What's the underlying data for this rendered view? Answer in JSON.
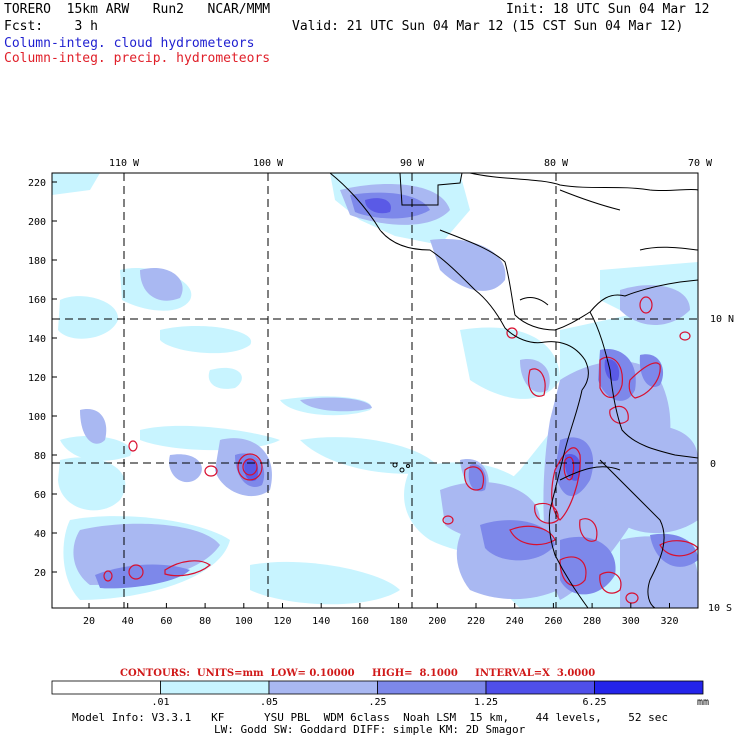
{
  "header": {
    "model": "TORERO  15km ARW   Run2   NCAR/MMM",
    "init": "Init: 18 UTC Sun 04 Mar 12",
    "fcst": "Fcst:    3 h",
    "valid": "Valid: 21 UTC Sun 04 Mar 12 (15 CST Sun 04 Mar 12)",
    "field1": "Column-integ. cloud hydrometeors",
    "field2": "Column-integ. precip. hydrometeors"
  },
  "map": {
    "lon_labels": [
      "110 W",
      "100 W",
      "90 W",
      "80 W",
      "70 W"
    ],
    "lat_labels": [
      "10 N",
      "0",
      "10 S"
    ],
    "y_ticks": [
      "220",
      "200",
      "180",
      "160",
      "140",
      "120",
      "100",
      "80",
      "60",
      "40",
      "20"
    ],
    "x_ticks": [
      "20",
      "40",
      "60",
      "80",
      "100",
      "120",
      "140",
      "160",
      "180",
      "200",
      "220",
      "240",
      "260",
      "280",
      "300",
      "320"
    ],
    "colors": {
      "light_cyan": "#c8f4ff",
      "light_blue": "#a9b8f2",
      "mid_blue": "#7d88ea",
      "deep_blue": "#5a5ae6",
      "contour_red": "#d81030",
      "coast": "#000000"
    }
  },
  "contours_text": "CONTOURS:  UNITS=mm  LOW= 0.10000     HIGH=  8.1000     INTERVAL=X  3.0000",
  "colorbar": {
    "labels": [
      ".01",
      ".05",
      ".25",
      "1.25",
      "6.25"
    ],
    "units": "mm",
    "colors": [
      "#ffffff",
      "#c8f4ff",
      "#a9b8f2",
      "#7d88ea",
      "#4f4fea",
      "#2424ea"
    ]
  },
  "model_info": {
    "line1": "Model Info: V3.3.1   KF      YSU PBL  WDM 6class  Noah LSM  15 km,    44 levels,    52 sec",
    "line2": "LW: Godd SW: Goddard DIFF: simple KM: 2D Smagor"
  }
}
